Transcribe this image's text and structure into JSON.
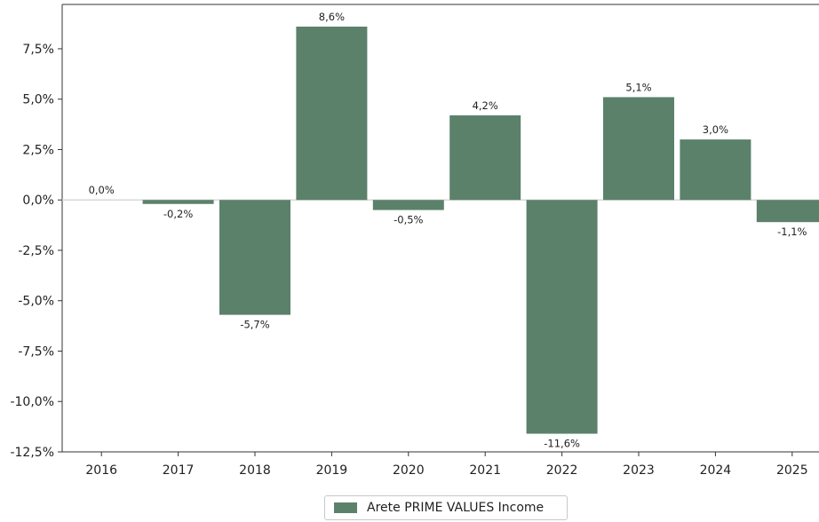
{
  "chart_data": {
    "type": "bar",
    "categories": [
      "2016",
      "2017",
      "2018",
      "2019",
      "2020",
      "2021",
      "2022",
      "2023",
      "2024",
      "2025"
    ],
    "series": [
      {
        "name": "Arete PRIME VALUES Income",
        "values": [
          0.0,
          -0.2,
          -5.7,
          8.6,
          -0.5,
          4.2,
          -11.6,
          5.1,
          3.0,
          -1.1
        ],
        "labels": [
          "0,0%",
          "-0,2%",
          "-5,7%",
          "8,6%",
          "-0,5%",
          "4,2%",
          "-11,6%",
          "5,1%",
          "3,0%",
          "-1,1%"
        ],
        "color": "#5b816b"
      }
    ],
    "yticks": [
      7.5,
      5.0,
      2.5,
      0.0,
      -2.5,
      -5.0,
      -7.5,
      -10.0,
      -12.5
    ],
    "ytick_labels": [
      "7,5%",
      "5,0%",
      "2,5%",
      "0,0%",
      "-2,5%",
      "-5,0%",
      "-7,5%",
      "-10,0%",
      "-12,5%"
    ],
    "ylim": [
      -12.5,
      9.7
    ],
    "title": "",
    "xlabel": "",
    "ylabel": "",
    "grid": false,
    "legend_position": "bottom-center"
  }
}
